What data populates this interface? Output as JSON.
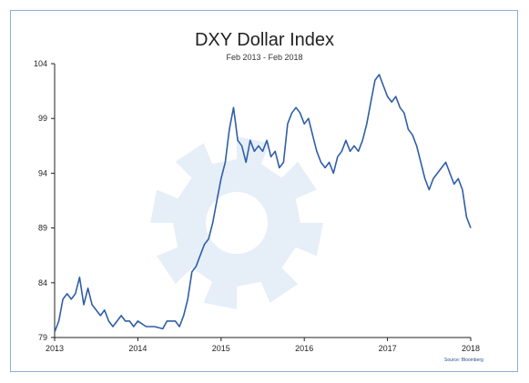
{
  "chart_data": {
    "type": "line",
    "title": "DXY Dollar Index",
    "subtitle": "Feb 2013 - Feb 2018",
    "source": "Source: Bloomberg",
    "xlabel": "",
    "ylabel": "",
    "xlim": [
      2013.0,
      2018.0
    ],
    "ylim": [
      79,
      104
    ],
    "y_ticks": [
      "104",
      "99",
      "94",
      "89",
      "84",
      "79"
    ],
    "x_ticks": [
      "2013",
      "2014",
      "2015",
      "2016",
      "2017",
      "2018"
    ],
    "grid": false,
    "line_color": "#2f5ea6",
    "series": [
      {
        "x": [
          2013.0,
          2013.05,
          2013.1,
          2013.15,
          2013.2,
          2013.25,
          2013.3,
          2013.35,
          2013.4,
          2013.45,
          2013.5,
          2013.55,
          2013.6,
          2013.65,
          2013.7,
          2013.75,
          2013.8,
          2013.85,
          2013.9,
          2013.95,
          2014.0,
          2014.1,
          2014.2,
          2014.3,
          2014.35,
          2014.4,
          2014.45,
          2014.5,
          2014.55,
          2014.6,
          2014.65,
          2014.7,
          2014.75,
          2014.8,
          2014.85,
          2014.9,
          2014.95,
          2015.0,
          2015.05,
          2015.1,
          2015.15,
          2015.2,
          2015.25,
          2015.3,
          2015.35,
          2015.4,
          2015.45,
          2015.5,
          2015.55,
          2015.6,
          2015.65,
          2015.7,
          2015.75,
          2015.8,
          2015.85,
          2015.9,
          2015.95,
          2016.0,
          2016.05,
          2016.1,
          2016.15,
          2016.2,
          2016.25,
          2016.3,
          2016.35,
          2016.4,
          2016.45,
          2016.5,
          2016.55,
          2016.6,
          2016.65,
          2016.7,
          2016.75,
          2016.8,
          2016.85,
          2016.9,
          2016.95,
          2017.0,
          2017.05,
          2017.1,
          2017.15,
          2017.2,
          2017.25,
          2017.3,
          2017.35,
          2017.4,
          2017.45,
          2017.5,
          2017.55,
          2017.6,
          2017.65,
          2017.7,
          2017.75,
          2017.8,
          2017.85,
          2017.9,
          2017.95,
          2018.0
        ],
        "values": [
          79.5,
          80.5,
          82.5,
          83.0,
          82.5,
          83.0,
          84.5,
          82.0,
          83.5,
          82.0,
          81.5,
          81.0,
          81.5,
          80.5,
          80.0,
          80.5,
          81.0,
          80.5,
          80.5,
          80.0,
          80.5,
          80.0,
          80.0,
          79.8,
          80.5,
          80.5,
          80.5,
          80.0,
          81.0,
          82.5,
          85.0,
          85.5,
          86.5,
          87.5,
          88.0,
          89.5,
          91.5,
          93.5,
          95.0,
          98.0,
          100.0,
          97.0,
          96.5,
          95.0,
          97.0,
          96.0,
          96.5,
          96.0,
          97.0,
          95.5,
          96.0,
          94.5,
          95.0,
          98.5,
          99.5,
          100.0,
          99.5,
          98.5,
          99.0,
          97.5,
          96.0,
          95.0,
          94.5,
          95.0,
          94.0,
          95.5,
          96.0,
          97.0,
          96.0,
          96.5,
          96.0,
          97.0,
          98.5,
          100.5,
          102.5,
          103.0,
          102.0,
          101.0,
          100.5,
          101.0,
          100.0,
          99.5,
          98.0,
          97.5,
          96.5,
          95.0,
          93.5,
          92.5,
          93.5,
          94.0,
          94.5,
          95.0,
          94.0,
          93.0,
          93.5,
          92.5,
          90.0,
          89.0
        ]
      }
    ]
  }
}
